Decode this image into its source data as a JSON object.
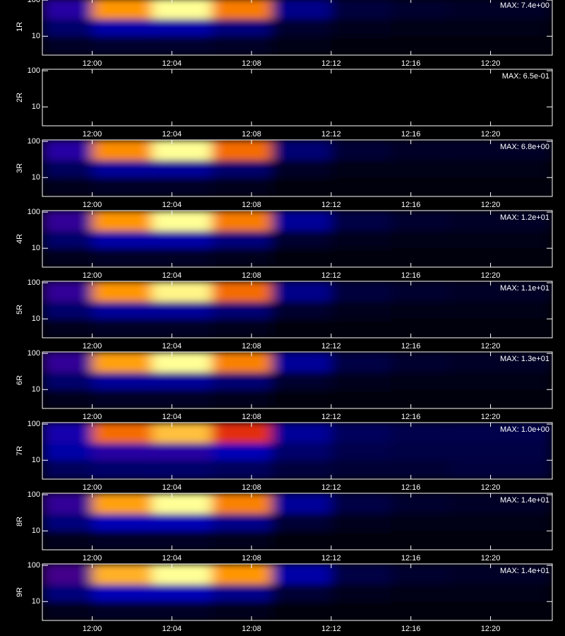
{
  "chart_data": {
    "type": "heatmap",
    "x_bins": [
      717.5,
      720,
      723,
      726,
      729,
      732,
      735,
      738,
      743.1
    ],
    "y_bins": [
      3,
      10,
      30,
      110
    ],
    "xlim": [
      717.5,
      743.1
    ],
    "xticks": [
      {
        "value": 720,
        "label": "12:00"
      },
      {
        "value": 724,
        "label": "12:04"
      },
      {
        "value": 728,
        "label": "12:08"
      },
      {
        "value": 732,
        "label": "12:12"
      },
      {
        "value": 736,
        "label": "12:16"
      },
      {
        "value": 740,
        "label": "12:20"
      }
    ],
    "ylim": [
      3,
      110
    ],
    "log_y": true,
    "yticks": [
      10,
      100
    ],
    "panels": [
      {
        "label": "1R",
        "max": 7.4,
        "max_label": "MAX: 7.4e+00",
        "values": [
          [
            0.05,
            0.06,
            0.06,
            0.05,
            0.03,
            0.02,
            0.02,
            0.02
          ],
          [
            0.14,
            0.22,
            0.22,
            0.16,
            0.06,
            0.04,
            0.03,
            0.03
          ],
          [
            0.3,
            0.8,
            1.0,
            0.75,
            0.18,
            0.08,
            0.06,
            0.05
          ]
        ]
      },
      {
        "label": "2R",
        "max": 0.65,
        "max_label": "MAX: 6.5e-01",
        "values": [
          [
            0,
            0,
            0,
            0,
            0,
            0,
            0,
            0
          ],
          [
            0,
            0,
            0,
            0,
            0,
            0,
            0,
            0
          ],
          [
            0,
            0,
            0,
            0,
            0,
            0,
            0,
            0
          ]
        ]
      },
      {
        "label": "3R",
        "max": 6.8,
        "max_label": "MAX: 6.8e+00",
        "values": [
          [
            0.04,
            0.05,
            0.05,
            0.04,
            0.02,
            0.02,
            0.02,
            0.02
          ],
          [
            0.12,
            0.2,
            0.2,
            0.14,
            0.05,
            0.03,
            0.03,
            0.03
          ],
          [
            0.3,
            0.78,
            1.0,
            0.72,
            0.15,
            0.07,
            0.05,
            0.05
          ]
        ]
      },
      {
        "label": "4R",
        "max": 12,
        "max_label": "MAX: 1.2e+01",
        "values": [
          [
            0.04,
            0.05,
            0.05,
            0.04,
            0.02,
            0.02,
            0.02,
            0.02
          ],
          [
            0.14,
            0.22,
            0.22,
            0.16,
            0.06,
            0.04,
            0.03,
            0.03
          ],
          [
            0.32,
            0.8,
            1.0,
            0.75,
            0.2,
            0.09,
            0.06,
            0.05
          ]
        ]
      },
      {
        "label": "5R",
        "max": 11,
        "max_label": "MAX: 1.1e+01",
        "values": [
          [
            0.04,
            0.05,
            0.05,
            0.04,
            0.02,
            0.02,
            0.02,
            0.02
          ],
          [
            0.14,
            0.2,
            0.2,
            0.15,
            0.06,
            0.04,
            0.03,
            0.03
          ],
          [
            0.32,
            0.8,
            0.98,
            0.72,
            0.18,
            0.08,
            0.06,
            0.05
          ]
        ]
      },
      {
        "label": "6R",
        "max": 13,
        "max_label": "MAX: 1.3e+01",
        "values": [
          [
            0.04,
            0.05,
            0.05,
            0.04,
            0.02,
            0.02,
            0.02,
            0.02
          ],
          [
            0.14,
            0.2,
            0.2,
            0.15,
            0.06,
            0.04,
            0.03,
            0.03
          ],
          [
            0.32,
            0.82,
            1.0,
            0.76,
            0.2,
            0.09,
            0.06,
            0.05
          ]
        ]
      },
      {
        "label": "7R",
        "max": 1.0,
        "max_label": "MAX: 1.0e+00",
        "values": [
          [
            0.12,
            0.14,
            0.14,
            0.12,
            0.08,
            0.07,
            0.07,
            0.08
          ],
          [
            0.22,
            0.3,
            0.3,
            0.24,
            0.14,
            0.1,
            0.09,
            0.09
          ],
          [
            0.28,
            0.72,
            0.88,
            0.6,
            0.2,
            0.12,
            0.1,
            0.1
          ]
        ]
      },
      {
        "label": "8R",
        "max": 14,
        "max_label": "MAX: 1.4e+01",
        "values": [
          [
            0.04,
            0.05,
            0.05,
            0.04,
            0.02,
            0.02,
            0.02,
            0.02
          ],
          [
            0.16,
            0.24,
            0.24,
            0.18,
            0.07,
            0.04,
            0.03,
            0.03
          ],
          [
            0.32,
            0.82,
            1.0,
            0.76,
            0.2,
            0.09,
            0.06,
            0.05
          ]
        ]
      },
      {
        "label": "9R",
        "max": 14,
        "max_label": "MAX: 1.4e+01",
        "values": [
          [
            0.04,
            0.05,
            0.05,
            0.04,
            0.02,
            0.02,
            0.02,
            0.02
          ],
          [
            0.16,
            0.24,
            0.24,
            0.18,
            0.07,
            0.04,
            0.03,
            0.03
          ],
          [
            0.34,
            0.85,
            1.0,
            0.8,
            0.22,
            0.09,
            0.06,
            0.05
          ]
        ]
      }
    ]
  }
}
